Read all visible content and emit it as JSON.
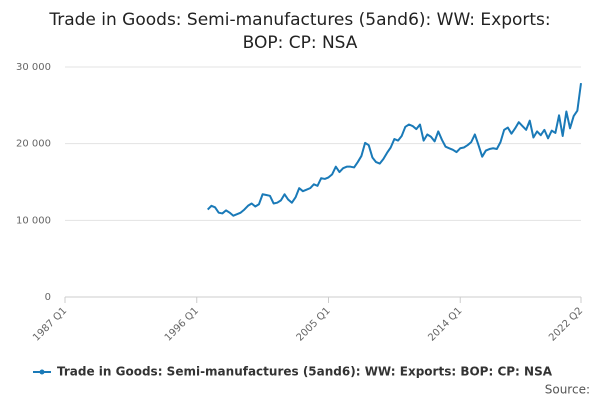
{
  "chart_data": {
    "type": "line",
    "title": "Trade in Goods: Semi-manufactures (5and6): WW: Exports:",
    "subtitle": "BOP: CP: NSA",
    "source": "Source:",
    "categories": [
      "1987 Q1",
      null,
      null,
      null,
      null,
      null,
      null,
      null,
      null,
      null,
      null,
      null,
      null,
      null,
      null,
      null,
      null,
      null,
      null,
      null,
      null,
      null,
      null,
      null,
      null,
      null,
      null,
      null,
      null,
      null,
      null,
      null,
      null,
      null,
      null,
      null,
      "1996 Q1",
      null,
      null,
      null,
      null,
      null,
      null,
      null,
      null,
      null,
      null,
      null,
      null,
      null,
      null,
      null,
      null,
      null,
      null,
      null,
      null,
      null,
      null,
      null,
      null,
      null,
      null,
      null,
      null,
      null,
      null,
      null,
      null,
      null,
      null,
      null,
      "2005 Q1",
      null,
      null,
      null,
      null,
      null,
      null,
      null,
      null,
      null,
      null,
      null,
      null,
      null,
      null,
      null,
      null,
      null,
      null,
      null,
      null,
      null,
      null,
      null,
      null,
      null,
      null,
      null,
      null,
      null,
      null,
      null,
      null,
      null,
      null,
      null,
      "2014 Q1",
      null,
      null,
      null,
      null,
      null,
      null,
      null,
      null,
      null,
      null,
      null,
      null,
      null,
      null,
      null,
      null,
      null,
      null,
      null,
      null,
      null,
      null,
      null,
      null,
      null,
      null,
      null,
      null,
      null,
      null,
      null,
      null,
      "2022 Q2"
    ],
    "series": [
      {
        "name": "Trade in Goods: Semi-manufactures (5and6): WW: Exports: BOP: CP: NSA",
        "color": "#1a7ab8",
        "values": [
          null,
          null,
          null,
          null,
          null,
          null,
          null,
          null,
          null,
          null,
          null,
          null,
          null,
          null,
          null,
          null,
          null,
          null,
          null,
          null,
          null,
          null,
          null,
          null,
          null,
          null,
          null,
          null,
          null,
          null,
          null,
          null,
          null,
          null,
          null,
          null,
          null,
          null,
          null,
          11400,
          11900,
          11700,
          11000,
          10900,
          11300,
          11000,
          10600,
          10800,
          11000,
          11400,
          11900,
          12200,
          11800,
          12100,
          13400,
          13300,
          13200,
          12200,
          12300,
          12600,
          13400,
          12700,
          12300,
          13000,
          14200,
          13800,
          14000,
          14200,
          14700,
          14500,
          15500,
          15400,
          15600,
          16000,
          17000,
          16300,
          16800,
          17000,
          17000,
          16900,
          17600,
          18400,
          20100,
          19800,
          18200,
          17600,
          17400,
          18000,
          18800,
          19500,
          20600,
          20400,
          21000,
          22200,
          22500,
          22300,
          21900,
          22500,
          20400,
          21200,
          20900,
          20300,
          21600,
          20500,
          19600,
          19400,
          19200,
          18900,
          19400,
          19500,
          19800,
          20200,
          21200,
          19800,
          18300,
          19100,
          19300,
          19400,
          19300,
          20200,
          21800,
          22100,
          21300,
          22000,
          22800,
          22300,
          21800,
          23000,
          20800,
          21600,
          21100,
          21800,
          20700,
          21700,
          21400,
          23700,
          21000,
          24200,
          22000,
          23600,
          24300,
          27900
        ]
      }
    ],
    "ylim": [
      0,
      30000
    ],
    "yticks": [
      0,
      {
        "value": 10000,
        "label": "10 000"
      },
      {
        "value": 20000,
        "label": "20 000"
      },
      {
        "value": 30000,
        "label": "30 000"
      }
    ],
    "grid": true
  }
}
